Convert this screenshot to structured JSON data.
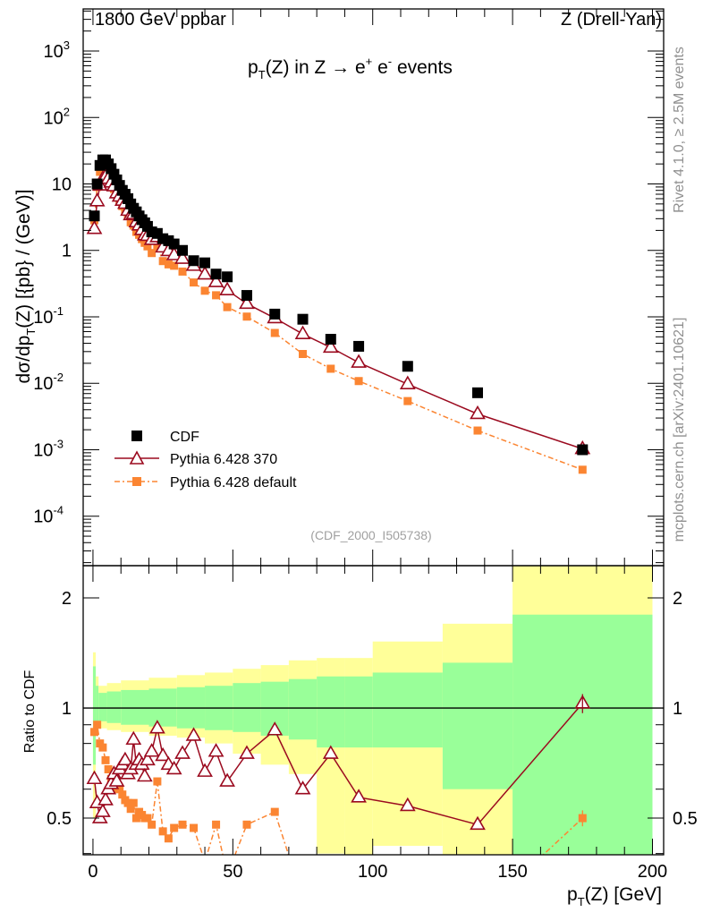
{
  "chart_data": [
    {
      "type": "scatter",
      "panel": "main",
      "title": "pT(Z) in Z → e+ e- events",
      "title_parts": {
        "p": "p",
        "sub": "T",
        "rest": "(Z) in Z →  e",
        "sup1": "+",
        "mid": " e",
        "sup2": "-",
        "end": " events"
      },
      "top_left": "1800 GeV ppbar",
      "top_right": "Z (Drell-Yan)",
      "ylabel": "dσ/dp_T(Z) [{pb} / (GeV)]",
      "ylabel_parts": {
        "a": "dσ/dp",
        "sub": "T",
        "b": "(Z) [{pb} / (GeV)]"
      },
      "yscale": "log",
      "ylim": [
        1.8e-05,
        4300
      ],
      "xlim": [
        -3.5,
        204
      ],
      "ytick_labels": [
        {
          "v": 1000,
          "base": "10",
          "exp": "3"
        },
        {
          "v": 100,
          "base": "10",
          "exp": "2"
        },
        {
          "v": 10,
          "base": "10",
          "exp": ""
        },
        {
          "v": 1,
          "base": "1",
          "exp": ""
        },
        {
          "v": 0.1,
          "base": "10",
          "exp": "-1"
        },
        {
          "v": 0.01,
          "base": "10",
          "exp": "-2"
        },
        {
          "v": 0.001,
          "base": "10",
          "exp": "-3"
        },
        {
          "v": 0.0001,
          "base": "10",
          "exp": "-4"
        }
      ],
      "watermark": "(CDF_2000_I505738)",
      "side_text_1": "Rivet 4.1.0, ≥ 2.5M events",
      "side_text_2": "mcplots.cern.ch [arXiv:2401.10621]",
      "legend": {
        "placement": "lower-left",
        "entries": [
          "CDF",
          "Pythia 6.428 370",
          "Pythia 6.428 default"
        ]
      },
      "x": [
        0.5,
        1.5,
        2.5,
        3.5,
        4.5,
        5.5,
        6.5,
        7.5,
        8.5,
        9.5,
        10.5,
        11.5,
        12.5,
        13.5,
        14.5,
        15.5,
        16.5,
        17.5,
        18.5,
        19.5,
        21,
        23,
        25,
        27,
        29,
        32,
        36,
        40,
        44,
        48,
        55,
        65,
        75,
        85,
        95,
        112.5,
        137.5,
        175
      ],
      "series": [
        {
          "name": "CDF",
          "color": "#000000",
          "values": [
            3.3,
            10,
            19,
            23,
            23,
            20,
            17,
            14,
            11.5,
            9.5,
            8,
            7,
            6,
            5,
            4.3,
            3.8,
            3.3,
            2.9,
            2.6,
            2.3,
            1.9,
            1.8,
            1.5,
            1.4,
            1.25,
            1.0,
            0.7,
            0.65,
            0.44,
            0.4,
            0.21,
            0.11,
            0.092,
            0.046,
            0.036,
            0.018,
            0.0072,
            0.001
          ]
        },
        {
          "name": "Pythia 6.428 370",
          "color": "#9b0a1f",
          "ratio": [
            0.64,
            0.55,
            0.5,
            0.52,
            0.56,
            0.6,
            0.62,
            0.66,
            0.63,
            0.68,
            0.7,
            0.72,
            0.66,
            0.68,
            0.82,
            0.7,
            0.72,
            0.7,
            0.65,
            0.72,
            0.76,
            0.88,
            0.74,
            0.7,
            0.68,
            0.75,
            0.84,
            0.67,
            0.76,
            0.63,
            0.75,
            0.87,
            0.6,
            0.75,
            0.57,
            0.54,
            0.48,
            1.03
          ]
        },
        {
          "name": "Pythia 6.428 default",
          "color": "#fb8532",
          "ratio": [
            0.86,
            0.9,
            0.8,
            0.78,
            0.72,
            0.68,
            0.64,
            0.6,
            0.62,
            0.6,
            0.58,
            0.56,
            0.55,
            0.53,
            0.55,
            0.5,
            0.52,
            0.51,
            0.5,
            0.5,
            0.48,
            0.63,
            0.46,
            0.44,
            0.47,
            0.48,
            0.47,
            0.38,
            0.48,
            0.35,
            0.48,
            0.52,
            0.3,
            0.36,
            0.3,
            0.3,
            0.27,
            0.5
          ]
        }
      ]
    },
    {
      "type": "area",
      "panel": "ratio",
      "ylabel": "Ratio to CDF",
      "xlabel_parts": {
        "p": "p",
        "sub": "T",
        "rest": "(Z) [GeV]"
      },
      "yscale": "log",
      "ylim": [
        0.397,
        2.45
      ],
      "xtick_labels": [
        "0",
        "50",
        "100",
        "150",
        "200"
      ],
      "xticks": [
        0,
        50,
        100,
        150,
        200
      ],
      "ytick_labels": [
        "0.5",
        "1",
        "2"
      ],
      "yticks": [
        0.5,
        1,
        2
      ],
      "bands_columns": [
        "x_lo",
        "x_hi",
        "yellow_lo",
        "green_lo",
        "green_hi",
        "yellow_hi"
      ],
      "bands": [
        [
          0,
          1,
          0.5,
          0.7,
          1.3,
          1.42
        ],
        [
          1,
          2,
          0.85,
          0.9,
          1.15,
          1.22
        ],
        [
          2,
          5,
          0.88,
          0.92,
          1.1,
          1.15
        ],
        [
          5,
          10,
          0.87,
          0.91,
          1.11,
          1.17
        ],
        [
          10,
          20,
          0.86,
          0.9,
          1.12,
          1.19
        ],
        [
          20,
          30,
          0.84,
          0.89,
          1.13,
          1.21
        ],
        [
          30,
          40,
          0.83,
          0.88,
          1.14,
          1.23
        ],
        [
          40,
          50,
          0.8,
          0.87,
          1.15,
          1.25
        ],
        [
          50,
          60,
          0.75,
          0.86,
          1.17,
          1.28
        ],
        [
          60,
          70,
          0.7,
          0.84,
          1.18,
          1.31
        ],
        [
          70,
          80,
          0.66,
          0.82,
          1.2,
          1.35
        ],
        [
          80,
          90,
          0.4,
          0.78,
          1.22,
          1.37
        ],
        [
          90,
          100,
          0.38,
          0.78,
          1.22,
          1.37
        ],
        [
          100,
          125,
          0.42,
          0.78,
          1.25,
          1.52
        ],
        [
          125,
          150,
          0.3,
          0.6,
          1.33,
          1.7
        ],
        [
          150,
          200,
          0.3,
          0.38,
          1.8,
          2.6
        ]
      ]
    }
  ]
}
